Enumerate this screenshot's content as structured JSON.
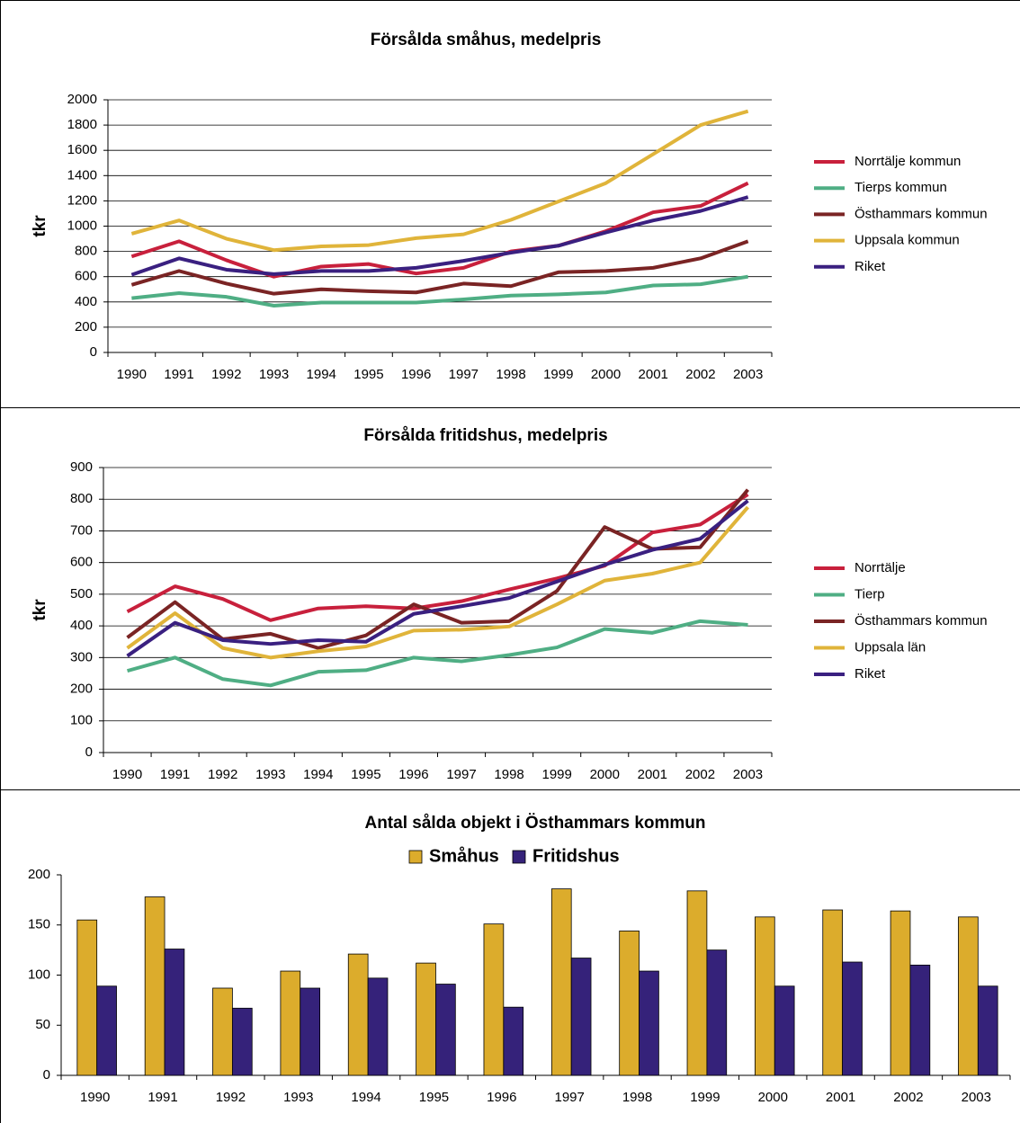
{
  "chart_data": [
    {
      "type": "line",
      "title": "Försålda småhus, medelpris",
      "y_label": "tkr",
      "categories": [
        "1990",
        "1991",
        "1992",
        "1993",
        "1994",
        "1995",
        "1996",
        "1997",
        "1998",
        "1999",
        "2000",
        "2001",
        "2002",
        "2003"
      ],
      "ylim": [
        0,
        2000
      ],
      "yticks": [
        0,
        200,
        400,
        600,
        800,
        1000,
        1200,
        1400,
        1600,
        1800,
        2000
      ],
      "grid": true,
      "legend": "right",
      "series": [
        {
          "name": "Norrtälje kommun",
          "color": "#c8203c",
          "values": [
            760,
            880,
            730,
            600,
            680,
            700,
            625,
            670,
            800,
            845,
            960,
            1110,
            1160,
            1340
          ]
        },
        {
          "name": "Tierps kommun",
          "color": "#4fae84",
          "values": [
            430,
            470,
            440,
            370,
            395,
            395,
            395,
            420,
            450,
            460,
            475,
            530,
            540,
            600
          ]
        },
        {
          "name": "Östhammars kommun",
          "color": "#7a2424",
          "values": [
            535,
            645,
            545,
            465,
            500,
            485,
            475,
            545,
            525,
            635,
            645,
            670,
            745,
            880
          ]
        },
        {
          "name": "Uppsala kommun",
          "color": "#e0b43a",
          "values": [
            940,
            1045,
            900,
            810,
            840,
            850,
            905,
            935,
            1050,
            1195,
            1340,
            1570,
            1800,
            1910
          ]
        },
        {
          "name": "Riket",
          "color": "#3a2080",
          "values": [
            615,
            745,
            655,
            620,
            645,
            645,
            670,
            725,
            790,
            845,
            950,
            1045,
            1120,
            1230
          ]
        }
      ]
    },
    {
      "type": "line",
      "title": "Försålda fritidshus, medelpris",
      "y_label": "tkr",
      "categories": [
        "1990",
        "1991",
        "1992",
        "1993",
        "1994",
        "1995",
        "1996",
        "1997",
        "1998",
        "1999",
        "2000",
        "2001",
        "2002",
        "2003"
      ],
      "ylim": [
        0,
        900
      ],
      "yticks": [
        0,
        100,
        200,
        300,
        400,
        500,
        600,
        700,
        800,
        900
      ],
      "grid": true,
      "legend": "right",
      "series": [
        {
          "name": "Norrtälje",
          "color": "#c8203c",
          "values": [
            445,
            525,
            485,
            418,
            455,
            462,
            455,
            478,
            515,
            550,
            590,
            695,
            720,
            815
          ]
        },
        {
          "name": "Tierp",
          "color": "#4fae84",
          "values": [
            258,
            300,
            232,
            212,
            255,
            260,
            300,
            288,
            308,
            332,
            390,
            378,
            415,
            403
          ]
        },
        {
          "name": "Östhammars kommun",
          "color": "#7a2424",
          "values": [
            363,
            475,
            358,
            375,
            330,
            370,
            468,
            410,
            415,
            510,
            712,
            643,
            648,
            830
          ]
        },
        {
          "name": "Uppsala län",
          "color": "#e0b43a",
          "values": [
            330,
            440,
            330,
            300,
            320,
            335,
            385,
            388,
            398,
            468,
            543,
            565,
            600,
            775
          ]
        },
        {
          "name": "Riket",
          "color": "#3a2080",
          "values": [
            305,
            410,
            355,
            343,
            355,
            350,
            438,
            462,
            488,
            540,
            593,
            640,
            675,
            795
          ]
        }
      ]
    },
    {
      "type": "bar",
      "title": "Antal sålda objekt i Östhammars kommun",
      "categories": [
        "1990",
        "1991",
        "1992",
        "1993",
        "1994",
        "1995",
        "1996",
        "1997",
        "1998",
        "1999",
        "2000",
        "2001",
        "2002",
        "2003"
      ],
      "ylim": [
        0,
        200
      ],
      "yticks": [
        0,
        50,
        100,
        150,
        200
      ],
      "grid": false,
      "legend": "top",
      "series": [
        {
          "name": "Småhus",
          "color": "#dcac2c",
          "values": [
            155,
            178,
            87,
            104,
            121,
            112,
            151,
            186,
            144,
            184,
            158,
            165,
            164,
            158
          ]
        },
        {
          "name": "Fritidshus",
          "color": "#35227a",
          "values": [
            89,
            126,
            67,
            87,
            97,
            91,
            68,
            117,
            104,
            125,
            89,
            113,
            110,
            89
          ]
        }
      ]
    }
  ]
}
